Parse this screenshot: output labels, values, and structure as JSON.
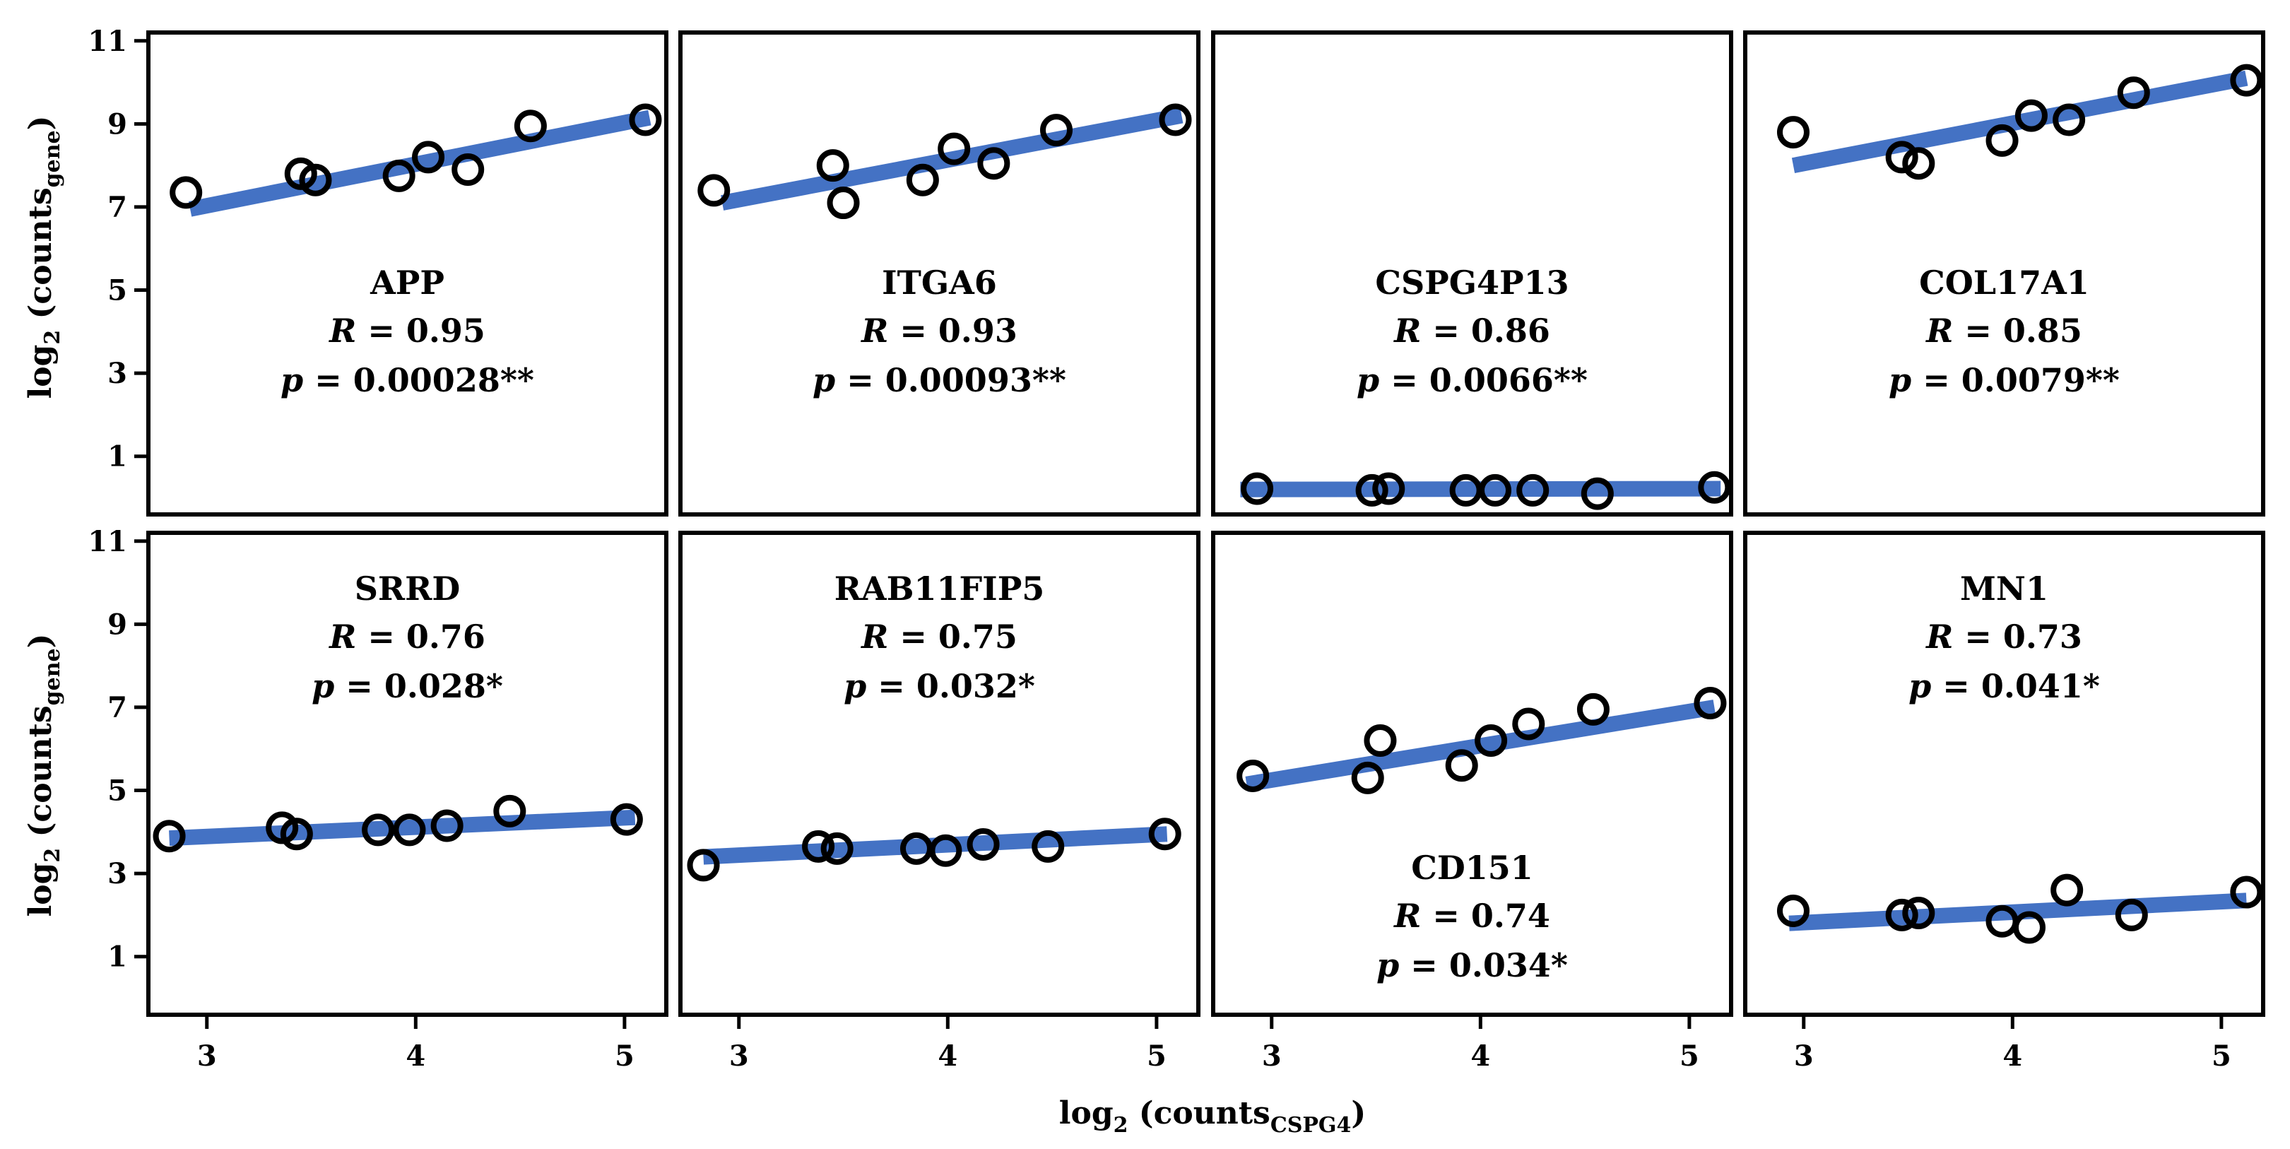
{
  "chart_data": {
    "type": "scatter",
    "layout": "2x4 grid",
    "xlabel": {
      "base": "log",
      "base_sub": "2",
      "main": " (counts",
      "sub": "CSPG4",
      "close": ")"
    },
    "ylabel": {
      "base": "log",
      "base_sub": "2",
      "main": " (counts",
      "sub": "gene",
      "close": ")"
    },
    "xlim": [
      2.72,
      5.2
    ],
    "ylim": [
      -0.4,
      11.2
    ],
    "xticks": [
      3,
      4,
      5
    ],
    "yticks": [
      1,
      3,
      5,
      7,
      9,
      11
    ],
    "fit_color": "#4472C4",
    "marker_color": "#000000",
    "panels": [
      {
        "gene": "APP",
        "R_label": "R",
        "R_text": " = 0.95",
        "p_label": "p",
        "p_text": " = 0.00028**",
        "annotation_position": "middle-center",
        "fit": {
          "x": [
            2.92,
            5.12
          ],
          "y": [
            6.95,
            9.15
          ]
        },
        "points": [
          [
            2.9,
            7.35
          ],
          [
            3.45,
            7.8
          ],
          [
            3.52,
            7.65
          ],
          [
            3.92,
            7.75
          ],
          [
            4.06,
            8.2
          ],
          [
            4.25,
            7.9
          ],
          [
            4.55,
            8.95
          ],
          [
            5.1,
            9.1
          ]
        ]
      },
      {
        "gene": "ITGA6",
        "R_label": "R",
        "R_text": " = 0.93",
        "p_label": "p",
        "p_text": " = 0.00093**",
        "annotation_position": "middle-center",
        "fit": {
          "x": [
            2.92,
            5.12
          ],
          "y": [
            7.1,
            9.2
          ]
        },
        "points": [
          [
            2.88,
            7.4
          ],
          [
            3.45,
            8.0
          ],
          [
            3.5,
            7.1
          ],
          [
            3.88,
            7.65
          ],
          [
            4.03,
            8.4
          ],
          [
            4.22,
            8.05
          ],
          [
            4.52,
            8.85
          ],
          [
            5.09,
            9.1
          ]
        ]
      },
      {
        "gene": "CSPG4P13",
        "R_label": "R",
        "R_text": " = 0.86",
        "p_label": "p",
        "p_text": " = 0.0066**",
        "annotation_position": "middle-center",
        "fit": {
          "x": [
            2.85,
            5.15
          ],
          "y": [
            0.2,
            0.22
          ]
        },
        "points": [
          [
            2.93,
            0.22
          ],
          [
            3.48,
            0.18
          ],
          [
            3.56,
            0.22
          ],
          [
            3.93,
            0.18
          ],
          [
            4.07,
            0.18
          ],
          [
            4.25,
            0.18
          ],
          [
            4.56,
            0.1
          ],
          [
            5.12,
            0.25
          ]
        ]
      },
      {
        "gene": "COL17A1",
        "R_label": "R",
        "R_text": " = 0.85",
        "p_label": "p",
        "p_text": " = 0.0079**",
        "annotation_position": "middle-center",
        "fit": {
          "x": [
            2.95,
            5.12
          ],
          "y": [
            8.0,
            10.1
          ]
        },
        "points": [
          [
            2.95,
            8.8
          ],
          [
            3.47,
            8.2
          ],
          [
            3.55,
            8.05
          ],
          [
            3.95,
            8.6
          ],
          [
            4.09,
            9.2
          ],
          [
            4.27,
            9.1
          ],
          [
            4.58,
            9.75
          ],
          [
            5.12,
            10.05
          ]
        ]
      },
      {
        "gene": "SRRD",
        "R_label": "R",
        "R_text": " = 0.76",
        "p_label": "p",
        "p_text": " = 0.028*",
        "annotation_position": "upper-center",
        "fit": {
          "x": [
            2.82,
            5.05
          ],
          "y": [
            3.85,
            4.35
          ]
        },
        "points": [
          [
            2.82,
            3.9
          ],
          [
            3.36,
            4.1
          ],
          [
            3.43,
            3.95
          ],
          [
            3.82,
            4.05
          ],
          [
            3.97,
            4.05
          ],
          [
            4.15,
            4.15
          ],
          [
            4.45,
            4.5
          ],
          [
            5.01,
            4.3
          ]
        ]
      },
      {
        "gene": "RAB11FIP5",
        "R_label": "R",
        "R_text": " = 0.75",
        "p_label": "p",
        "p_text": " = 0.032*",
        "annotation_position": "upper-center",
        "fit": {
          "x": [
            2.83,
            5.05
          ],
          "y": [
            3.4,
            3.95
          ]
        },
        "points": [
          [
            2.83,
            3.2
          ],
          [
            3.38,
            3.65
          ],
          [
            3.47,
            3.6
          ],
          [
            3.85,
            3.6
          ],
          [
            3.99,
            3.55
          ],
          [
            4.17,
            3.7
          ],
          [
            4.48,
            3.65
          ],
          [
            5.04,
            3.95
          ]
        ]
      },
      {
        "gene": "CD151",
        "R_label": "R",
        "R_text": " = 0.74",
        "p_label": "p",
        "p_text": " = 0.034*",
        "annotation_position": "lower-center",
        "fit": {
          "x": [
            2.88,
            5.12
          ],
          "y": [
            5.15,
            7.0
          ]
        },
        "points": [
          [
            2.91,
            5.35
          ],
          [
            3.46,
            5.3
          ],
          [
            3.52,
            6.2
          ],
          [
            3.91,
            5.6
          ],
          [
            4.05,
            6.2
          ],
          [
            4.23,
            6.6
          ],
          [
            4.54,
            6.95
          ],
          [
            5.1,
            7.1
          ]
        ]
      },
      {
        "gene": "MN1",
        "R_label": "R",
        "R_text": " = 0.73",
        "p_label": "p",
        "p_text": " = 0.041*",
        "annotation_position": "upper-center",
        "fit": {
          "x": [
            2.93,
            5.12
          ],
          "y": [
            1.8,
            2.35
          ]
        },
        "points": [
          [
            2.95,
            2.1
          ],
          [
            3.47,
            2.0
          ],
          [
            3.55,
            2.05
          ],
          [
            3.95,
            1.85
          ],
          [
            4.08,
            1.7
          ],
          [
            4.26,
            2.6
          ],
          [
            4.57,
            2.0
          ],
          [
            5.12,
            2.55
          ]
        ]
      }
    ]
  }
}
